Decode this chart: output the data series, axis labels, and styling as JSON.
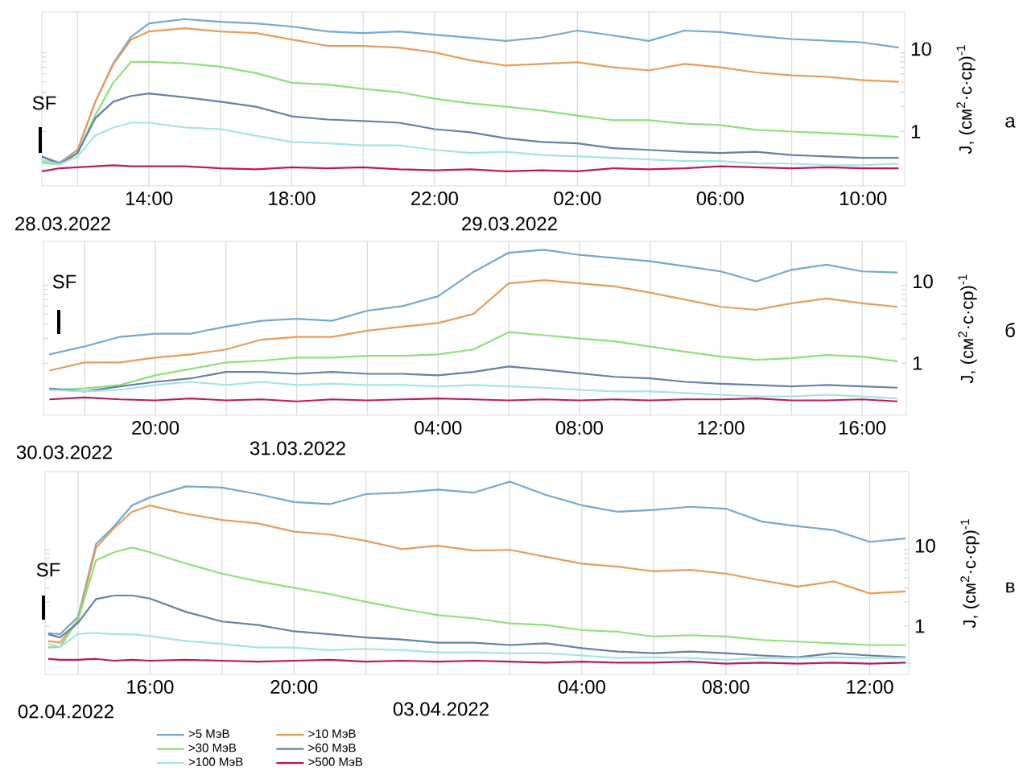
{
  "chart_data": [
    {
      "type": "line",
      "ylabel": "J, (см$^{2}$·с·ср)$^{-1}$",
      "log": "y",
      "grid": "x",
      "line_style": "solid",
      "marker": "none",
      "xlim": [
        "2022-03-28T11:00",
        "2022-03-29T11:10"
      ],
      "ylim": [
        0.22,
        28
      ],
      "yticks": [
        1,
        10
      ],
      "xticks": [
        {
          "value": "2022-03-28T12:00",
          "label": null
        },
        {
          "value": "2022-03-28T14:00",
          "label": "14:00"
        },
        {
          "value": "2022-03-28T16:00",
          "label": null
        },
        {
          "value": "2022-03-28T18:00",
          "label": "18:00"
        },
        {
          "value": "2022-03-28T20:00",
          "label": null
        },
        {
          "value": "2022-03-28T22:00",
          "label": "22:00"
        },
        {
          "value": "2022-03-29T00:00",
          "label": null
        },
        {
          "value": "2022-03-29T02:00",
          "label": "02:00"
        },
        {
          "value": "2022-03-29T04:00",
          "label": null
        },
        {
          "value": "2022-03-29T06:00",
          "label": "06:00"
        },
        {
          "value": "2022-03-29T08:00",
          "label": null
        },
        {
          "value": "2022-03-29T10:00",
          "label": "10:00"
        }
      ],
      "annotations": [
        "SF",
        "28.03.2022",
        "29.03.2022",
        "а"
      ],
      "x": [
        "2022-03-28T11:00",
        "2022-03-28T11:30",
        "2022-03-28T12:00",
        "2022-03-28T12:30",
        "2022-03-28T13:00",
        "2022-03-28T13:30",
        "2022-03-28T14:00",
        "2022-03-28T15:00",
        "2022-03-28T16:00",
        "2022-03-28T17:00",
        "2022-03-28T18:00",
        "2022-03-28T19:00",
        "2022-03-28T20:00",
        "2022-03-28T21:00",
        "2022-03-28T22:00",
        "2022-03-28T23:00",
        "2022-03-29T00:00",
        "2022-03-29T01:00",
        "2022-03-29T02:00",
        "2022-03-29T03:00",
        "2022-03-29T04:00",
        "2022-03-29T05:00",
        "2022-03-29T06:00",
        "2022-03-29T07:00",
        "2022-03-29T08:00",
        "2022-03-29T09:00",
        "2022-03-29T10:00",
        "2022-03-29T11:00"
      ],
      "series": [
        {
          "color": "#74a9cf",
          "values": [
            0.5,
            0.42,
            0.6,
            2.3,
            6.7,
            14,
            20.4,
            23,
            21.3,
            20.4,
            18.7,
            16.3,
            15.6,
            16.3,
            14.9,
            13.7,
            12.5,
            13.8,
            16.7,
            14.6,
            12.5,
            16.7,
            16,
            14.4,
            13.2,
            12.6,
            12.0,
            10.4
          ]
        },
        {
          "color": "#e89c5a",
          "values": [
            0.45,
            0.4,
            0.6,
            2.3,
            6.5,
            13,
            16.3,
            17.8,
            16.3,
            15.6,
            13,
            10.9,
            10.9,
            10.4,
            9.1,
            7.3,
            6.3,
            6.6,
            6.9,
            6.0,
            5.5,
            6.6,
            6.0,
            5.2,
            4.8,
            4.6,
            4.2,
            4.0
          ]
        },
        {
          "color": "#8ee07a",
          "values": [
            0.42,
            0.4,
            0.55,
            1.6,
            3.9,
            7,
            7,
            6.7,
            6.1,
            5.1,
            3.9,
            3.7,
            3.3,
            3.0,
            2.5,
            2.2,
            2.0,
            1.8,
            1.56,
            1.37,
            1.37,
            1.25,
            1.2,
            1.05,
            1.0,
            0.96,
            0.91,
            0.86
          ]
        },
        {
          "color": "#6482a4",
          "values": [
            0.5,
            0.4,
            0.55,
            1.46,
            2.3,
            2.7,
            2.9,
            2.6,
            2.3,
            2.0,
            1.53,
            1.4,
            1.34,
            1.28,
            1.07,
            0.98,
            0.83,
            0.75,
            0.72,
            0.63,
            0.6,
            0.57,
            0.55,
            0.57,
            0.52,
            0.5,
            0.48,
            0.48
          ]
        },
        {
          "color": "#a6e3e3",
          "values": [
            0.45,
            0.4,
            0.5,
            0.9,
            1.12,
            1.28,
            1.28,
            1.12,
            1.07,
            0.89,
            0.75,
            0.72,
            0.68,
            0.68,
            0.6,
            0.55,
            0.57,
            0.52,
            0.5,
            0.48,
            0.46,
            0.44,
            0.44,
            0.41,
            0.41,
            0.39,
            0.39,
            0.41
          ]
        },
        {
          "color": "#c0185e",
          "values": [
            0.33,
            0.36,
            0.37,
            0.38,
            0.39,
            0.38,
            0.38,
            0.38,
            0.36,
            0.35,
            0.37,
            0.36,
            0.37,
            0.35,
            0.34,
            0.35,
            0.33,
            0.34,
            0.33,
            0.36,
            0.35,
            0.36,
            0.38,
            0.37,
            0.36,
            0.37,
            0.36,
            0.36
          ]
        }
      ]
    },
    {
      "type": "line",
      "ylabel": "J, (см$^{2}$·с·ср)$^{-1}$",
      "log": "y",
      "grid": "x",
      "line_style": "solid",
      "marker": "none",
      "xlim": [
        "2022-03-30T16:50",
        "2022-03-31T17:15"
      ],
      "ylim": [
        0.23,
        31
      ],
      "yticks": [
        1,
        10
      ],
      "xticks": [
        {
          "value": "2022-03-30T18:00",
          "label": null
        },
        {
          "value": "2022-03-30T20:00",
          "label": "20:00"
        },
        {
          "value": "2022-03-30T22:00",
          "label": null
        },
        {
          "value": "2022-03-31T00:00",
          "label": null
        },
        {
          "value": "2022-03-31T02:00",
          "label": null
        },
        {
          "value": "2022-03-31T04:00",
          "label": "04:00"
        },
        {
          "value": "2022-03-31T06:00",
          "label": null
        },
        {
          "value": "2022-03-31T08:00",
          "label": "08:00"
        },
        {
          "value": "2022-03-31T10:00",
          "label": null
        },
        {
          "value": "2022-03-31T12:00",
          "label": "12:00"
        },
        {
          "value": "2022-03-31T14:00",
          "label": null
        },
        {
          "value": "2022-03-31T16:00",
          "label": "16:00"
        }
      ],
      "annotations": [
        "SF",
        "30.03.2022",
        "31.03.2022",
        "б"
      ],
      "x": [
        "2022-03-30T17:00",
        "2022-03-30T18:00",
        "2022-03-30T19:00",
        "2022-03-30T20:00",
        "2022-03-30T21:00",
        "2022-03-30T22:00",
        "2022-03-30T23:00",
        "2022-03-31T00:00",
        "2022-03-31T01:00",
        "2022-03-31T02:00",
        "2022-03-31T03:00",
        "2022-03-31T04:00",
        "2022-03-31T05:00",
        "2022-03-31T06:00",
        "2022-03-31T07:00",
        "2022-03-31T08:00",
        "2022-03-31T09:00",
        "2022-03-31T10:00",
        "2022-03-31T11:00",
        "2022-03-31T12:00",
        "2022-03-31T13:00",
        "2022-03-31T14:00",
        "2022-03-31T15:00",
        "2022-03-31T16:00",
        "2022-03-31T17:00"
      ],
      "series": [
        {
          "color": "#74a9cf",
          "values": [
            1.28,
            1.6,
            2.1,
            2.3,
            2.3,
            2.8,
            3.3,
            3.5,
            3.3,
            4.4,
            5.0,
            6.6,
            13.1,
            22.5,
            24.5,
            21.2,
            19.4,
            17.7,
            15.4,
            13.3,
            10,
            13.9,
            16.1,
            13.3,
            12.9
          ]
        },
        {
          "color": "#e89c5a",
          "values": [
            0.81,
            1.02,
            1.02,
            1.17,
            1.28,
            1.47,
            1.94,
            2.1,
            2.1,
            2.5,
            2.8,
            3.1,
            4.0,
            9.5,
            10.4,
            9.5,
            8.7,
            7.3,
            6.0,
            4.9,
            4.5,
            5.4,
            6.2,
            5.4,
            4.9
          ]
        },
        {
          "color": "#8ee07a",
          "values": [
            0.47,
            0.49,
            0.54,
            0.71,
            0.85,
            1.02,
            1.07,
            1.17,
            1.17,
            1.23,
            1.23,
            1.28,
            1.47,
            2.4,
            2.2,
            2.0,
            1.85,
            1.6,
            1.38,
            1.2,
            1.1,
            1.15,
            1.26,
            1.2,
            1.05
          ]
        },
        {
          "color": "#6482a4",
          "values": [
            0.49,
            0.45,
            0.52,
            0.59,
            0.65,
            0.78,
            0.78,
            0.74,
            0.78,
            0.74,
            0.74,
            0.71,
            0.78,
            0.91,
            0.83,
            0.75,
            0.68,
            0.65,
            0.59,
            0.56,
            0.54,
            0.52,
            0.54,
            0.52,
            0.5
          ]
        },
        {
          "color": "#a6e3e3",
          "values": [
            0.47,
            0.45,
            0.47,
            0.54,
            0.59,
            0.54,
            0.59,
            0.54,
            0.56,
            0.54,
            0.54,
            0.52,
            0.54,
            0.52,
            0.5,
            0.47,
            0.45,
            0.45,
            0.43,
            0.41,
            0.39,
            0.39,
            0.41,
            0.39,
            0.37
          ]
        },
        {
          "color": "#c0185e",
          "values": [
            0.36,
            0.38,
            0.36,
            0.35,
            0.37,
            0.35,
            0.36,
            0.34,
            0.36,
            0.35,
            0.36,
            0.37,
            0.36,
            0.35,
            0.36,
            0.35,
            0.36,
            0.35,
            0.36,
            0.36,
            0.37,
            0.35,
            0.35,
            0.36,
            0.34
          ]
        }
      ]
    },
    {
      "type": "line",
      "ylabel": "J, (см$^{2}$·с·ср)$^{-1}$",
      "log": "y",
      "grid": "x",
      "line_style": "solid",
      "marker": "none",
      "legend": "bottom",
      "xlim": [
        "2022-04-02T13:05",
        "2022-04-03T13:05"
      ],
      "ylim": [
        0.25,
        84
      ],
      "yticks": [
        1,
        10
      ],
      "xticks": [
        {
          "value": "2022-04-02T14:00",
          "label": null
        },
        {
          "value": "2022-04-02T16:00",
          "label": "16:00"
        },
        {
          "value": "2022-04-02T18:00",
          "label": null
        },
        {
          "value": "2022-04-02T20:00",
          "label": "20:00"
        },
        {
          "value": "2022-04-02T22:00",
          "label": null
        },
        {
          "value": "2022-04-03T00:00",
          "label": null
        },
        {
          "value": "2022-04-03T02:00",
          "label": null
        },
        {
          "value": "2022-04-03T04:00",
          "label": "04:00"
        },
        {
          "value": "2022-04-03T06:00",
          "label": null
        },
        {
          "value": "2022-04-03T08:00",
          "label": "08:00"
        },
        {
          "value": "2022-04-03T10:00",
          "label": null
        },
        {
          "value": "2022-04-03T12:00",
          "label": "12:00"
        }
      ],
      "annotations": [
        "SF",
        "02.04.2022",
        "03.04.2022",
        "в"
      ],
      "x": [
        "2022-04-02T13:10",
        "2022-04-02T13:30",
        "2022-04-02T14:00",
        "2022-04-02T14:30",
        "2022-04-02T15:00",
        "2022-04-02T15:30",
        "2022-04-02T16:00",
        "2022-04-02T17:00",
        "2022-04-02T18:00",
        "2022-04-02T19:00",
        "2022-04-02T20:00",
        "2022-04-02T21:00",
        "2022-04-02T22:00",
        "2022-04-02T23:00",
        "2022-04-03T00:00",
        "2022-04-03T01:00",
        "2022-04-03T02:00",
        "2022-04-03T03:00",
        "2022-04-03T04:00",
        "2022-04-03T05:00",
        "2022-04-03T06:00",
        "2022-04-03T07:00",
        "2022-04-03T08:00",
        "2022-04-03T09:00",
        "2022-04-03T10:00",
        "2022-04-03T11:00",
        "2022-04-03T12:00",
        "2022-04-03T13:00"
      ],
      "series": [
        {
          "name": ">5 МэВ",
          "color": "#74a9cf",
          "values": [
            0.82,
            0.79,
            1.3,
            10.5,
            17.5,
            31.8,
            40,
            55,
            53,
            44,
            35,
            33,
            44,
            46,
            50,
            46,
            63,
            43,
            32,
            26.5,
            28,
            30.6,
            29,
            20,
            17.5,
            15.7,
            11.2,
            12.3
          ]
        },
        {
          "name": ">10 МэВ",
          "color": "#e89c5a",
          "values": [
            0.65,
            0.62,
            1.2,
            9.5,
            16.6,
            26.5,
            31.8,
            25,
            21,
            19,
            15,
            13.8,
            11.5,
            9.1,
            10,
            8.7,
            8.9,
            7.3,
            6.0,
            5.5,
            4.8,
            5.0,
            4.5,
            3.7,
            3.1,
            3.6,
            2.55,
            2.7
          ]
        },
        {
          "name": ">30 МэВ",
          "color": "#8ee07a",
          "values": [
            0.54,
            0.55,
            1.2,
            6.6,
            8.3,
            9.5,
            8.3,
            6.0,
            4.5,
            3.6,
            3.0,
            2.5,
            2.0,
            1.64,
            1.37,
            1.25,
            1.08,
            1.03,
            0.89,
            0.85,
            0.74,
            0.77,
            0.74,
            0.67,
            0.64,
            0.61,
            0.58,
            0.58
          ]
        },
        {
          "name": ">60 МэВ",
          "color": "#6482a4",
          "values": [
            0.79,
            0.72,
            1.1,
            2.17,
            2.4,
            2.4,
            2.2,
            1.5,
            1.14,
            1.03,
            0.86,
            0.79,
            0.72,
            0.68,
            0.62,
            0.62,
            0.58,
            0.61,
            0.53,
            0.48,
            0.46,
            0.48,
            0.46,
            0.43,
            0.41,
            0.46,
            0.43,
            0.41
          ]
        },
        {
          "name": ">100 МэВ",
          "color": "#a6e3e3",
          "values": [
            0.6,
            0.55,
            0.8,
            0.82,
            0.79,
            0.79,
            0.75,
            0.65,
            0.6,
            0.54,
            0.54,
            0.5,
            0.52,
            0.5,
            0.47,
            0.47,
            0.46,
            0.46,
            0.43,
            0.4,
            0.41,
            0.4,
            0.38,
            0.4,
            0.4,
            0.41,
            0.4,
            0.4
          ]
        },
        {
          "name": ">500 МэВ",
          "color": "#c0185e",
          "values": [
            0.39,
            0.38,
            0.38,
            0.39,
            0.37,
            0.38,
            0.37,
            0.38,
            0.37,
            0.36,
            0.37,
            0.38,
            0.36,
            0.37,
            0.36,
            0.37,
            0.36,
            0.35,
            0.36,
            0.35,
            0.35,
            0.36,
            0.34,
            0.35,
            0.34,
            0.35,
            0.34,
            0.35
          ]
        }
      ]
    }
  ]
}
